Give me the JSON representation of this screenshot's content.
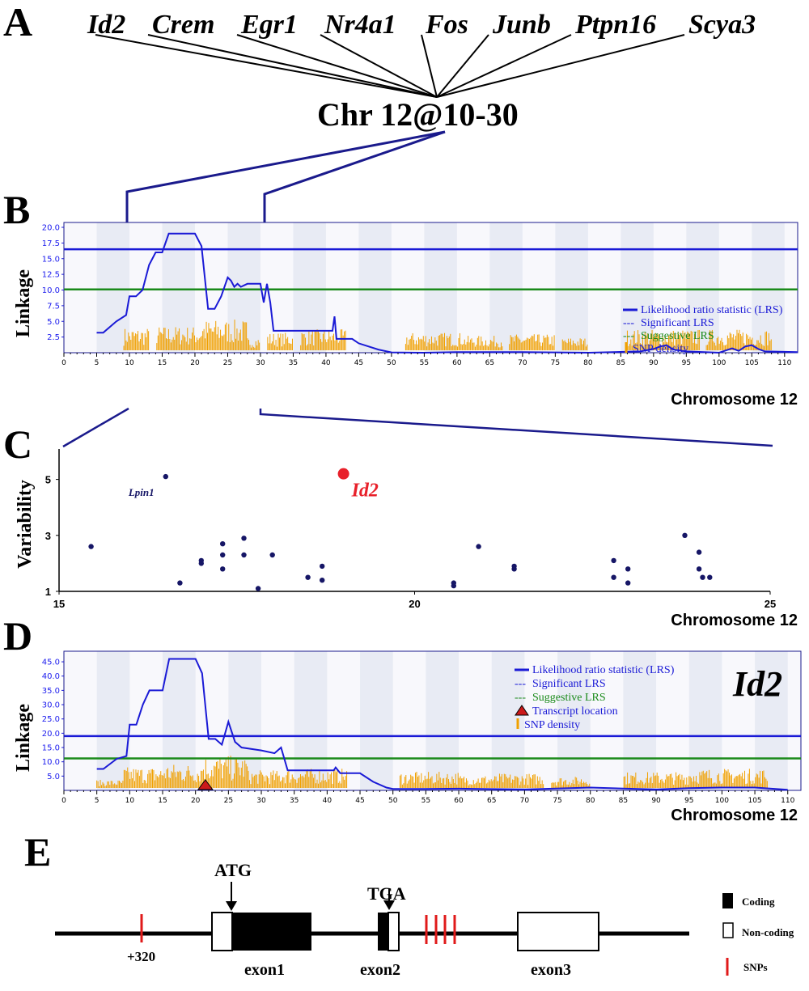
{
  "panels": {
    "A": {
      "letter": "A",
      "genes": [
        "Id2",
        "Crem",
        "Egr1",
        "Nr4a1",
        "Fos",
        "Junb",
        "Ptpn16",
        "Scya3"
      ],
      "locus_label": "Chr 12@10-30"
    },
    "B": {
      "letter": "B"
    },
    "C": {
      "letter": "C"
    },
    "D": {
      "letter": "D",
      "gene_label": "Id2"
    },
    "E": {
      "letter": "E"
    }
  },
  "chart_data": [
    {
      "panel": "B",
      "type": "line",
      "ylabel": "Linkage",
      "xlabel": "Chromosome 12",
      "xlim": [
        0,
        112
      ],
      "ylim": [
        0,
        20
      ],
      "x_ticks": [
        0,
        5,
        10,
        15,
        20,
        25,
        30,
        35,
        40,
        45,
        50,
        55,
        60,
        65,
        70,
        75,
        80,
        85,
        90,
        95,
        100,
        105,
        110
      ],
      "y_ticks": [
        2.5,
        5.0,
        7.5,
        10.0,
        12.5,
        15.0,
        17.5,
        20.0
      ],
      "significant_lrs": 16.5,
      "suggestive_lrs": 10.1,
      "legend": [
        "Likelihood ratio statistic (LRS)",
        "Significant LRS",
        "Suggestive LRS",
        "SNP density"
      ],
      "legend_colors": [
        "#1a1ad6",
        "#1a1ad6",
        "#1a8a1a",
        "#f0a000"
      ],
      "series": [
        {
          "name": "Likelihood ratio statistic (LRS)",
          "x": [
            5,
            6,
            8,
            9.5,
            10,
            11,
            12,
            13,
            14,
            15,
            16,
            17,
            20,
            21,
            22,
            23,
            24,
            25,
            25.5,
            26,
            26.5,
            27,
            28,
            29,
            30,
            30.5,
            31,
            31.5,
            32,
            33,
            41,
            41.3,
            41.6,
            42,
            44,
            45,
            48,
            50,
            55,
            60,
            70,
            80,
            88,
            90,
            91,
            92,
            93,
            95,
            100,
            102,
            103,
            104,
            105,
            106,
            107,
            112
          ],
          "y": [
            3.2,
            3.2,
            5,
            6,
            9,
            9,
            10,
            14,
            16,
            16,
            19,
            19,
            19,
            17,
            7,
            7,
            9,
            12,
            11.5,
            10.5,
            11,
            10.5,
            11,
            11,
            11,
            8,
            11,
            8,
            3.5,
            3.5,
            3.5,
            5.8,
            2.2,
            2.2,
            2.2,
            1.5,
            0.5,
            0.05,
            0,
            0.1,
            0.1,
            0,
            0.2,
            0.6,
            1.0,
            1.2,
            0.5,
            0.2,
            0,
            0.7,
            0.3,
            1.0,
            1.2,
            0.6,
            0.2,
            0.1
          ]
        }
      ]
    },
    {
      "panel": "C",
      "type": "scatter",
      "ylabel": "Variability",
      "xlabel": "Chromosome 12",
      "xlim": [
        15,
        25
      ],
      "ylim": [
        1,
        6
      ],
      "x_ticks": [
        15,
        20,
        25
      ],
      "y_ticks": [
        1,
        3,
        5
      ],
      "annotations": [
        {
          "label": "Lpin1",
          "x": 16.5,
          "y": 5.1
        },
        {
          "label": "Id2",
          "x": 19.0,
          "y": 5.2
        }
      ],
      "points": [
        {
          "x": 15.45,
          "y": 2.6
        },
        {
          "x": 16.5,
          "y": 5.1
        },
        {
          "x": 16.7,
          "y": 1.3
        },
        {
          "x": 17.0,
          "y": 2.0
        },
        {
          "x": 17.0,
          "y": 2.1
        },
        {
          "x": 17.3,
          "y": 2.7
        },
        {
          "x": 17.3,
          "y": 2.3
        },
        {
          "x": 17.3,
          "y": 1.8
        },
        {
          "x": 17.6,
          "y": 2.9
        },
        {
          "x": 17.6,
          "y": 2.3
        },
        {
          "x": 17.8,
          "y": 1.1
        },
        {
          "x": 18.0,
          "y": 2.3
        },
        {
          "x": 18.5,
          "y": 1.5
        },
        {
          "x": 18.7,
          "y": 1.9
        },
        {
          "x": 18.7,
          "y": 1.4
        },
        {
          "x": 20.55,
          "y": 1.3
        },
        {
          "x": 20.55,
          "y": 1.2
        },
        {
          "x": 20.9,
          "y": 2.6
        },
        {
          "x": 21.4,
          "y": 1.9
        },
        {
          "x": 21.4,
          "y": 1.8
        },
        {
          "x": 22.8,
          "y": 2.1
        },
        {
          "x": 22.8,
          "y": 1.5
        },
        {
          "x": 23.0,
          "y": 1.8
        },
        {
          "x": 23.0,
          "y": 1.3
        },
        {
          "x": 23.8,
          "y": 3.0
        },
        {
          "x": 24.0,
          "y": 2.4
        },
        {
          "x": 24.0,
          "y": 1.8
        },
        {
          "x": 24.05,
          "y": 1.5
        },
        {
          "x": 24.15,
          "y": 1.5
        }
      ],
      "highlight": {
        "label": "Id2",
        "x": 19.0,
        "y": 5.2,
        "color": "#e8202a"
      }
    },
    {
      "panel": "D",
      "type": "line",
      "ylabel": "Linkage",
      "xlabel": "Chromosome 12",
      "xlim": [
        0,
        112
      ],
      "ylim": [
        0,
        47
      ],
      "x_ticks": [
        0,
        5,
        10,
        15,
        20,
        25,
        30,
        35,
        40,
        45,
        50,
        55,
        60,
        65,
        70,
        75,
        80,
        85,
        90,
        95,
        100,
        105,
        110
      ],
      "y_ticks": [
        5.0,
        10.0,
        15.0,
        20.0,
        25.0,
        30.0,
        35.0,
        40.0,
        45.0
      ],
      "significant_lrs": 19.0,
      "suggestive_lrs": 11.2,
      "transcript_location": 21.5,
      "legend": [
        "Likelihood ratio statistic (LRS)",
        "Significant LRS",
        "Suggestive LRS",
        "Transcript location",
        "SNP density"
      ],
      "legend_colors": [
        "#1a1ad6",
        "#1a1ad6",
        "#1a8a1a",
        "#cc1a1a",
        "#f0a000"
      ],
      "series": [
        {
          "name": "Likelihood ratio statistic (LRS)",
          "x": [
            5,
            6,
            8,
            9.5,
            10,
            11,
            12,
            13,
            14,
            15,
            16,
            17,
            20,
            21,
            22,
            23,
            24,
            24.5,
            25,
            26,
            26.5,
            27,
            30,
            32,
            33,
            34,
            41,
            41.3,
            42,
            45,
            47,
            49,
            50,
            55,
            60,
            70,
            80,
            90,
            95,
            100,
            105,
            110
          ],
          "y": [
            7.5,
            7.5,
            11,
            12,
            23,
            23,
            30,
            35,
            35,
            35,
            46,
            46,
            46,
            41,
            18,
            18,
            16,
            20,
            24,
            17,
            16,
            15,
            14,
            13,
            15,
            7,
            7,
            8,
            6,
            6,
            3,
            1,
            0.5,
            0.5,
            0.6,
            0.3,
            1.0,
            0.3,
            0.8,
            1.0,
            1.0,
            0.2
          ]
        }
      ]
    },
    {
      "panel": "E",
      "type": "gene-structure",
      "start_codon": "ATG",
      "stop_codon": "TGA",
      "snp_label": "+320",
      "exons": [
        "exon1",
        "exon2",
        "exon3"
      ],
      "legend": [
        "Coding",
        "Non-coding",
        "SNPs"
      ]
    }
  ]
}
